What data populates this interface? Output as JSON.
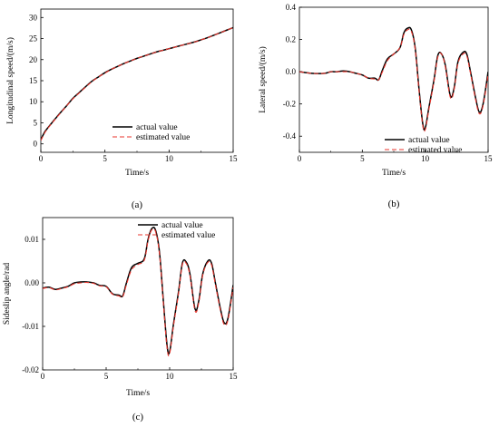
{
  "colors": {
    "actual": "#000000",
    "estimated": "#e8342c"
  },
  "chart_data": [
    {
      "type": "line",
      "panel_label": "(a)",
      "xlabel": "Time/s",
      "ylabel": "Longitudinal speed/(m/s)",
      "xlim": [
        0,
        15
      ],
      "ylim": [
        -2,
        32
      ],
      "xticks": [
        0,
        5,
        10,
        15
      ],
      "yticks": [
        0,
        5,
        10,
        15,
        20,
        25,
        30
      ],
      "grid": false,
      "legend_position": "bottom-right",
      "series": [
        {
          "name": "actual value",
          "color": "#000000",
          "dash": "solid",
          "x": [
            0,
            0.3,
            0.6,
            1,
            1.5,
            2,
            2.5,
            3,
            3.5,
            4,
            4.5,
            5,
            5.5,
            6,
            6.5,
            7,
            7.5,
            8,
            8.5,
            9,
            9.5,
            10,
            10.5,
            11,
            11.5,
            12,
            12.5,
            13,
            13.5,
            14,
            14.5,
            15
          ],
          "y": [
            1.0,
            2.8,
            4.0,
            5.5,
            7.3,
            9.0,
            10.8,
            12.2,
            13.6,
            14.9,
            15.9,
            16.9,
            17.7,
            18.4,
            19.1,
            19.7,
            20.3,
            20.8,
            21.3,
            21.8,
            22.2,
            22.6,
            23.0,
            23.4,
            23.8,
            24.2,
            24.7,
            25.2,
            25.8,
            26.4,
            27.0,
            27.6
          ]
        },
        {
          "name": "estimated value",
          "color": "#e8342c",
          "dash": "dashed",
          "x": [
            0,
            0.3,
            0.6,
            1,
            1.5,
            2,
            2.5,
            3,
            3.5,
            4,
            4.5,
            5,
            5.5,
            6,
            6.5,
            7,
            7.5,
            8,
            8.5,
            9,
            9.5,
            10,
            10.5,
            11,
            11.5,
            12,
            12.5,
            13,
            13.5,
            14,
            14.5,
            15
          ],
          "y": [
            0.8,
            2.6,
            3.9,
            5.4,
            7.2,
            9.0,
            10.7,
            12.1,
            13.5,
            14.8,
            15.9,
            16.8,
            17.7,
            18.4,
            19.1,
            19.7,
            20.3,
            20.8,
            21.3,
            21.8,
            22.2,
            22.6,
            23.0,
            23.4,
            23.8,
            24.2,
            24.7,
            25.2,
            25.8,
            26.4,
            27.0,
            27.6
          ]
        }
      ]
    },
    {
      "type": "line",
      "panel_label": "(b)",
      "xlabel": "Time/s",
      "ylabel": "Lateral speed/(m/s)",
      "xlim": [
        0,
        15
      ],
      "ylim": [
        -0.5,
        0.4
      ],
      "xticks": [
        0,
        5,
        10,
        15
      ],
      "yticks": [
        -0.4,
        -0.2,
        0.0,
        0.2,
        0.4
      ],
      "grid": false,
      "legend_position": "bottom-right",
      "series": [
        {
          "name": "actual value",
          "color": "#000000",
          "dash": "solid",
          "x": [
            0,
            1,
            2,
            2.5,
            3,
            3.5,
            4,
            4.5,
            5,
            5.5,
            6,
            6.3,
            6.6,
            7,
            7.5,
            8,
            8.3,
            8.6,
            8.9,
            9.2,
            9.5,
            9.8,
            10.0,
            10.3,
            10.7,
            11.0,
            11.3,
            11.6,
            12.0,
            12.3,
            12.6,
            13.0,
            13.3,
            13.6,
            14.0,
            14.3,
            14.6,
            15
          ],
          "y": [
            0.0,
            -0.01,
            -0.01,
            0.0,
            0.0,
            0.005,
            0.0,
            -0.01,
            -0.02,
            -0.04,
            -0.04,
            -0.05,
            0.01,
            0.08,
            0.11,
            0.15,
            0.24,
            0.27,
            0.26,
            0.15,
            -0.1,
            -0.32,
            -0.35,
            -0.22,
            -0.05,
            0.1,
            0.11,
            0.04,
            -0.15,
            -0.1,
            0.06,
            0.12,
            0.11,
            0.0,
            -0.16,
            -0.25,
            -0.2,
            0.0
          ]
        },
        {
          "name": "estimated value",
          "color": "#e8342c",
          "dash": "dashed",
          "x": [
            0,
            1,
            2,
            2.5,
            3,
            3.5,
            4,
            4.5,
            5,
            5.5,
            6,
            6.3,
            6.6,
            7,
            7.5,
            8,
            8.3,
            8.6,
            8.9,
            9.2,
            9.5,
            9.8,
            10.0,
            10.3,
            10.7,
            11.0,
            11.3,
            11.6,
            12.0,
            12.3,
            12.6,
            13.0,
            13.3,
            13.6,
            14.0,
            14.3,
            14.6,
            15
          ],
          "y": [
            0.0,
            -0.01,
            -0.01,
            0.0,
            0.0,
            0.0,
            0.0,
            -0.01,
            -0.02,
            -0.04,
            -0.045,
            -0.05,
            0.0,
            0.07,
            0.11,
            0.15,
            0.23,
            0.26,
            0.25,
            0.14,
            -0.11,
            -0.33,
            -0.36,
            -0.23,
            -0.06,
            0.09,
            0.11,
            0.03,
            -0.16,
            -0.11,
            0.05,
            0.11,
            0.1,
            -0.01,
            -0.17,
            -0.26,
            -0.21,
            -0.02
          ]
        }
      ]
    },
    {
      "type": "line",
      "panel_label": "(c)",
      "xlabel": "Time/s",
      "ylabel": "Sideslip angle/rad",
      "xlim": [
        0,
        15
      ],
      "ylim": [
        -0.02,
        0.015
      ],
      "xticks": [
        0,
        5,
        10,
        15
      ],
      "yticks": [
        -0.02,
        -0.01,
        0.0,
        0.01
      ],
      "ytick_labels": [
        "-0.02",
        "-0.01",
        "0.00",
        "0.01"
      ],
      "grid": false,
      "legend_position": "top-right",
      "series": [
        {
          "name": "actual value",
          "color": "#000000",
          "dash": "solid",
          "x": [
            0,
            0.5,
            1,
            1.5,
            2,
            2.5,
            3,
            3.5,
            4,
            4.5,
            5,
            5.5,
            6,
            6.3,
            6.6,
            7,
            7.5,
            8,
            8.3,
            8.6,
            8.9,
            9.2,
            9.5,
            9.8,
            10.0,
            10.3,
            10.7,
            11.0,
            11.3,
            11.6,
            12.0,
            12.3,
            12.6,
            13.0,
            13.3,
            13.6,
            14.0,
            14.3,
            14.6,
            15
          ],
          "y": [
            -0.0012,
            -0.001,
            -0.0015,
            -0.0012,
            -0.0008,
            0.0,
            0.0002,
            0.0002,
            0.0,
            -0.0006,
            -0.0008,
            -0.0025,
            -0.0028,
            -0.003,
            0.0,
            0.0035,
            0.0045,
            0.0055,
            0.01,
            0.0125,
            0.012,
            0.007,
            -0.004,
            -0.0145,
            -0.0158,
            -0.0095,
            -0.002,
            0.0045,
            0.0048,
            0.002,
            -0.006,
            -0.004,
            0.002,
            0.005,
            0.0045,
            0.0,
            -0.006,
            -0.0092,
            -0.008,
            -0.0005
          ]
        },
        {
          "name": "estimated value",
          "color": "#e8342c",
          "dash": "dashed",
          "x": [
            0,
            0.5,
            1,
            1.5,
            2,
            2.5,
            3,
            3.5,
            4,
            4.5,
            5,
            5.5,
            6,
            6.3,
            6.6,
            7,
            7.5,
            8,
            8.3,
            8.6,
            8.9,
            9.2,
            9.5,
            9.8,
            10.0,
            10.3,
            10.7,
            11.0,
            11.3,
            11.6,
            12.0,
            12.3,
            12.6,
            13.0,
            13.3,
            13.6,
            14.0,
            14.3,
            14.6,
            15
          ],
          "y": [
            -0.0013,
            -0.0011,
            -0.0016,
            -0.0013,
            -0.0009,
            -0.0002,
            0.0,
            0.0001,
            -0.0001,
            -0.0007,
            -0.0009,
            -0.0026,
            -0.003,
            -0.0032,
            -0.0004,
            0.003,
            0.0042,
            0.0052,
            0.0097,
            0.0122,
            0.0117,
            0.0066,
            -0.0045,
            -0.015,
            -0.0162,
            -0.0099,
            -0.0024,
            0.0042,
            0.0045,
            0.0016,
            -0.0064,
            -0.0044,
            0.0017,
            0.0047,
            0.0041,
            -0.0004,
            -0.0064,
            -0.0096,
            -0.0084,
            -0.001
          ]
        }
      ]
    }
  ]
}
